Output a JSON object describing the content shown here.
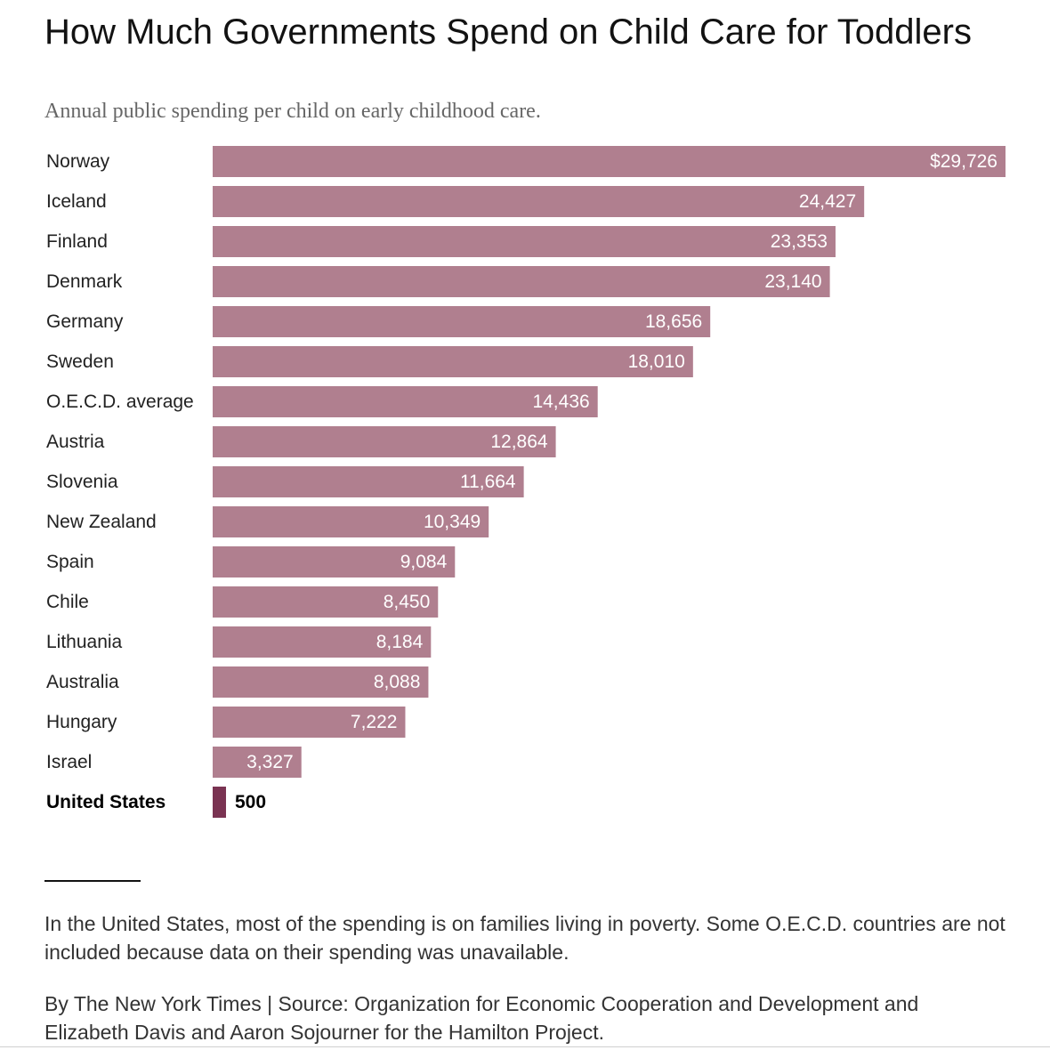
{
  "header": {
    "title": "How Much Governments Spend on Child Care for Toddlers",
    "subtitle": "Annual public spending per child on early childhood care."
  },
  "footer": {
    "note": "In the United States, most of the spending is on families living in poverty. Some O.E.C.D. countries are not included because data on their spending was unavailable.",
    "source": "By The New York Times | Source: Organization for Economic Cooperation and Development and Elizabeth Davis and Aaron Sojourner for the Hamilton Project."
  },
  "colors": {
    "bar": "#b07f8f",
    "highlight_bar": "#7a3352",
    "bar_label": "#ffffff",
    "highlight_label": "#000000",
    "category_label": "#222222"
  },
  "chart_data": {
    "type": "bar",
    "orientation": "horizontal",
    "title": "How Much Governments Spend on Child Care for Toddlers",
    "subtitle": "Annual public spending per child on early childhood care.",
    "xlabel": "",
    "ylabel": "",
    "grid": false,
    "categories": [
      "Norway",
      "Iceland",
      "Finland",
      "Denmark",
      "Germany",
      "Sweden",
      "O.E.C.D. average",
      "Austria",
      "Slovenia",
      "New Zealand",
      "Spain",
      "Chile",
      "Lithuania",
      "Australia",
      "Hungary",
      "Israel",
      "United States"
    ],
    "values": [
      29726,
      24427,
      23353,
      23140,
      18656,
      18010,
      14436,
      12864,
      11664,
      10349,
      9084,
      8450,
      8184,
      8088,
      7222,
      3327,
      500
    ],
    "value_labels": [
      "$29,726",
      "24,427",
      "23,353",
      "23,140",
      "18,656",
      "18,010",
      "14,436",
      "12,864",
      "11,664",
      "10,349",
      "9,084",
      "8,450",
      "8,184",
      "8,088",
      "7,222",
      "3,327",
      "500"
    ],
    "highlight": "United States",
    "xlim": [
      0,
      29726
    ]
  }
}
